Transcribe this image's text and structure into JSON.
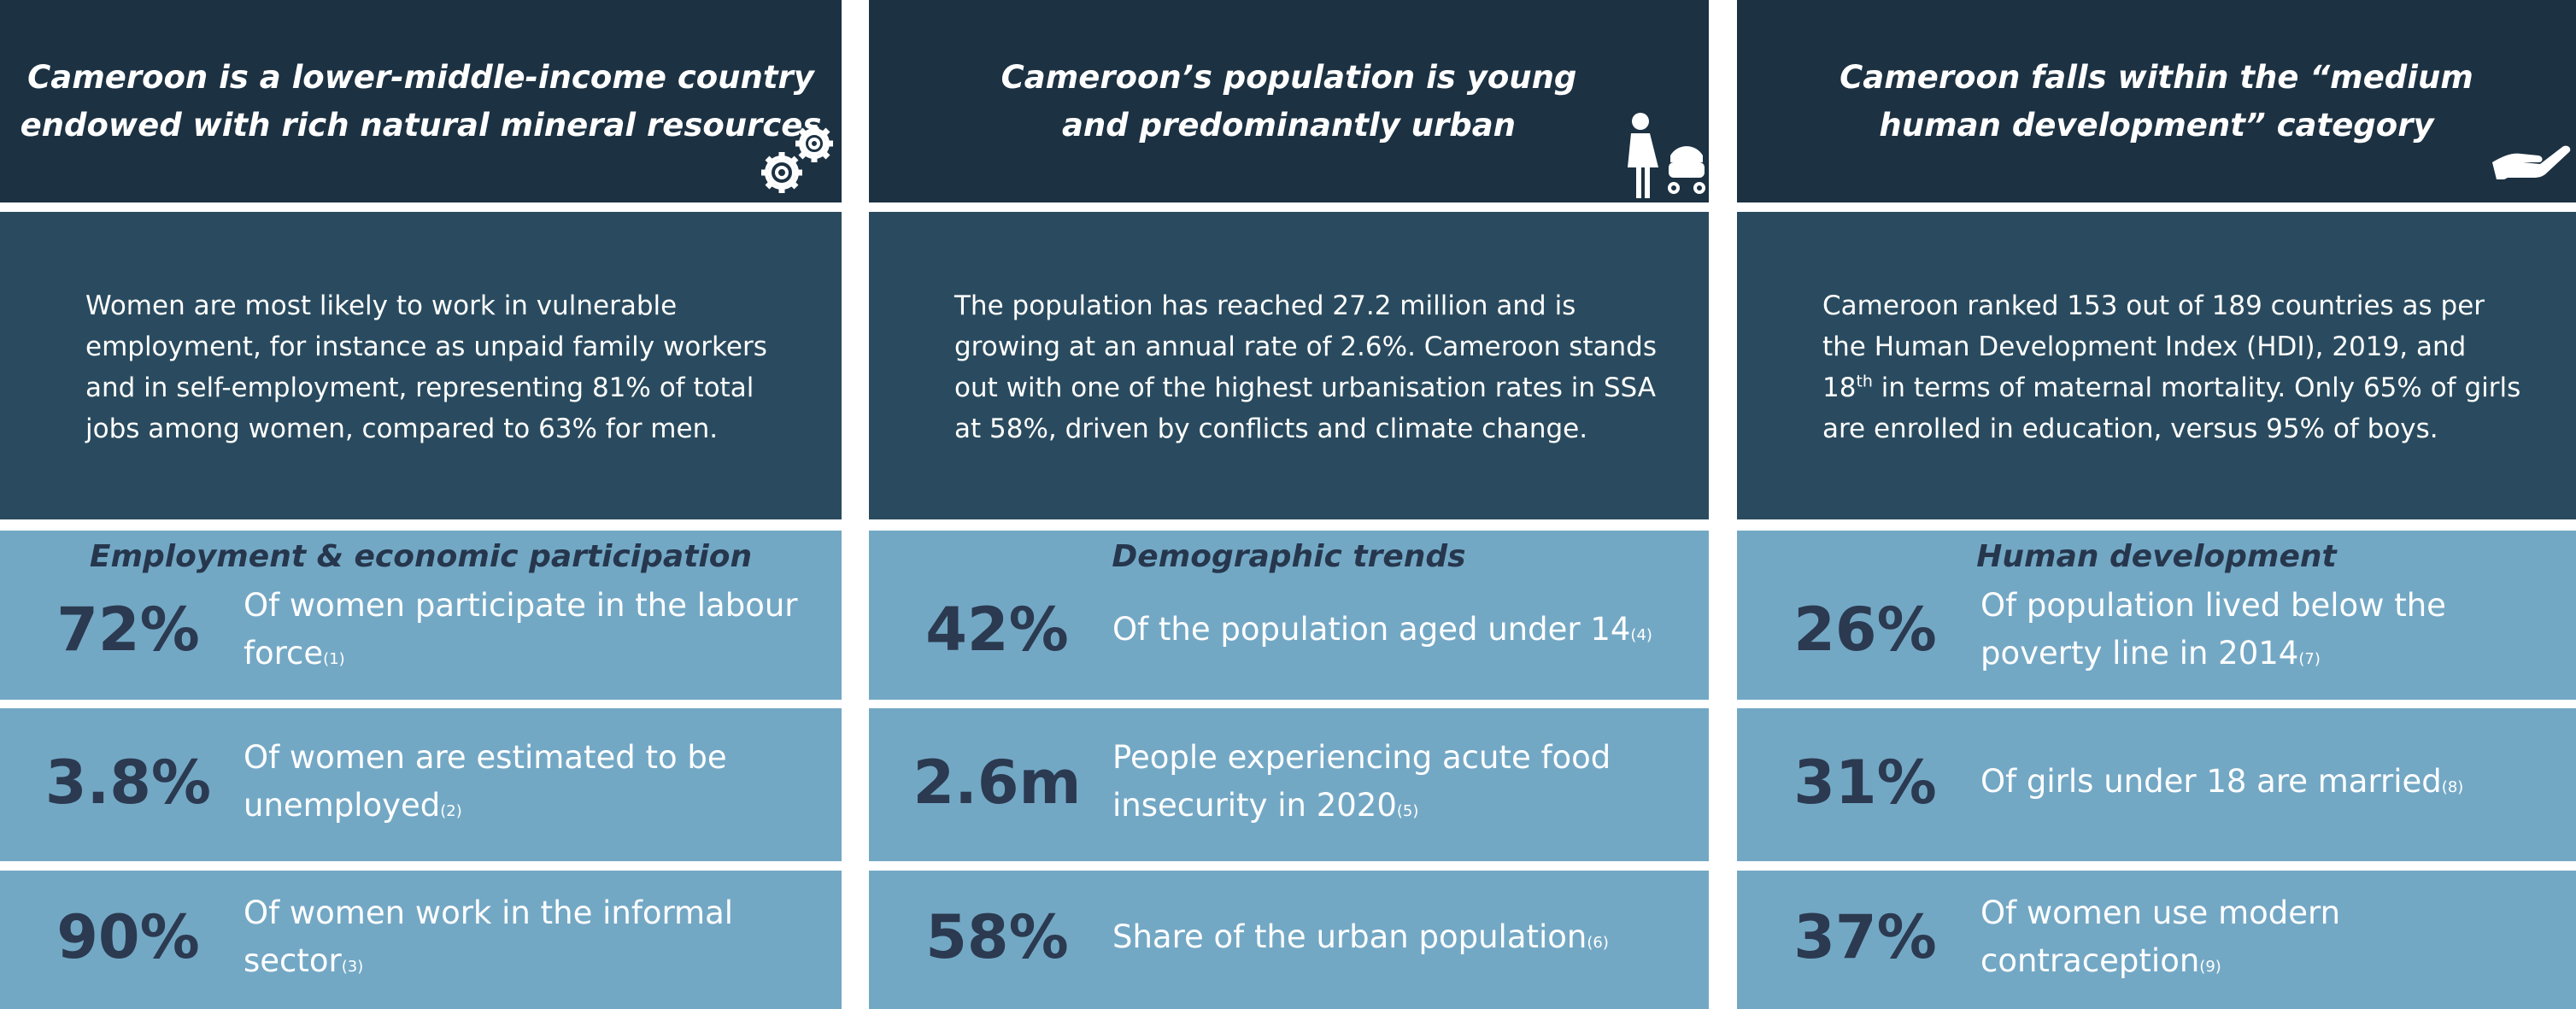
{
  "columns": [
    {
      "header": [
        "Cameroon is a lower-middle-income country",
        "endowed with rich natural mineral resources"
      ],
      "description": [
        "Women are most likely to work in vulnerable employment, for instance as unpaid family workers and in self-employment, representing 81% of total jobs among women, compared to 63% for men."
      ],
      "section": "Employment & economic participation",
      "stats": [
        {
          "value": "72%",
          "text": "Of women participate in the labour force",
          "note": "(1)"
        },
        {
          "value": "3.8%",
          "text": "Of women are estimated to be unemployed",
          "note": "(2)"
        },
        {
          "value": "90%",
          "text": "Of women work in the informal sector",
          "note": "(3)"
        }
      ]
    },
    {
      "header": [
        "Cameroon’s population is young",
        "and predominantly urban"
      ],
      "description": [
        "The population has reached 27.2 million and is growing at an annual rate of 2.6%. Cameroon stands out with one of the highest urbanisation rates in SSA at 58%, driven by conflicts and climate change."
      ],
      "section": "Demographic trends",
      "stats": [
        {
          "value": "42%",
          "text": "Of the population aged under 14",
          "note": "(4)"
        },
        {
          "value": "2.6m",
          "text": "People experiencing acute food insecurity in 2020",
          "note": "(5)"
        },
        {
          "value": "58%",
          "text": "Share of the urban population",
          "note": "(6)"
        }
      ]
    },
    {
      "header": [
        "Cameroon falls within the “medium",
        "human development” category"
      ],
      "description": [
        "Cameroon ranked 153 out of 189 countries as per the Human Development Index (HDI), 2019, and 18",
        "th",
        " in terms of maternal mortality. Only 65% of girls are enrolled in education, versus 95% of boys."
      ],
      "section": "Human development",
      "stats": [
        {
          "value": "26%",
          "text": "Of population lived below the poverty line in 2014",
          "note": "(7)"
        },
        {
          "value": "31%",
          "text": "Of girls under 18 are married",
          "note": "(8)"
        },
        {
          "value": "37%",
          "text": "Of women use modern contraception",
          "note": "(9)"
        }
      ]
    }
  ]
}
